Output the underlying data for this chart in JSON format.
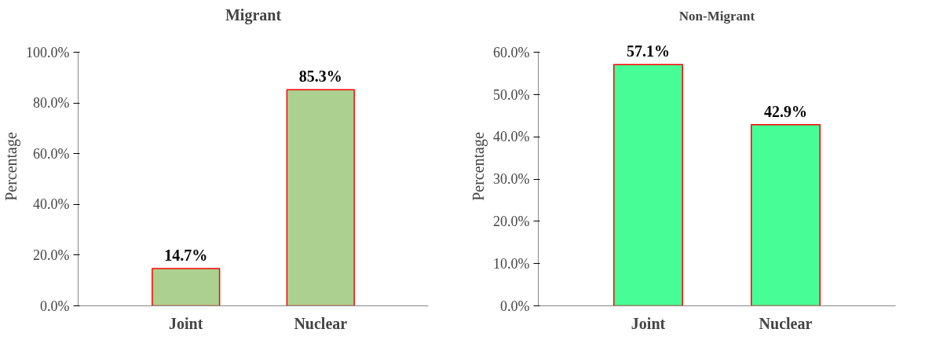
{
  "chart_data": [
    {
      "type": "bar",
      "title": "Migrant",
      "ylabel": "Percentage",
      "categories": [
        "Joint",
        "Nuclear"
      ],
      "values": [
        14.7,
        85.3
      ],
      "color": "#acd08f",
      "value_labels": [
        "14.7%",
        "85.3%"
      ],
      "ylim": [
        0,
        100
      ],
      "yticks": [
        {
          "value": 0,
          "label": "0.0%"
        },
        {
          "value": 20,
          "label": "20.0%"
        },
        {
          "value": 40,
          "label": "40.0%"
        },
        {
          "value": 60,
          "label": "60.0%"
        },
        {
          "value": 80,
          "label": "80.0%"
        },
        {
          "value": 100,
          "label": "100.0%"
        }
      ]
    },
    {
      "type": "bar",
      "title": "Non-Migrant",
      "ylabel": "Percentage",
      "categories": [
        "Joint",
        "Nuclear"
      ],
      "values": [
        57.1,
        42.9
      ],
      "color": "#47fd96",
      "value_labels": [
        "57.1%",
        "42.9%"
      ],
      "ylim": [
        0,
        60
      ],
      "yticks": [
        {
          "value": 0,
          "label": "0.0%"
        },
        {
          "value": 10,
          "label": "10.0%"
        },
        {
          "value": 20,
          "label": "20.0%"
        },
        {
          "value": 30,
          "label": "30.0%"
        },
        {
          "value": 40,
          "label": "40.0%"
        },
        {
          "value": 50,
          "label": "50.0%"
        },
        {
          "value": 60,
          "label": "60.0%"
        }
      ]
    }
  ]
}
